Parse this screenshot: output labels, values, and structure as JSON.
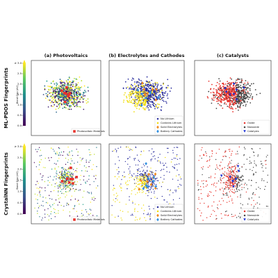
{
  "row_labels": [
    "ML-PDOS Fingerprints",
    "CrystalNN Fingerprints"
  ],
  "column_titles": [
    "(a) Photovoltaics",
    "(b) Electrolytes and Cathodes",
    "(c) Catalysts"
  ],
  "colorbar": {
    "label": "Band Gap (eV)",
    "ticks": [
      {
        "value": 0,
        "label": "0.0"
      },
      0.5,
      {
        "value": 1,
        "label": "1.0"
      },
      1.5,
      {
        "value": 2,
        "label": "2.0"
      },
      2.5,
      {
        "value": 3,
        "label": "≥ 3.0"
      }
    ]
  },
  "legends": [
    [
      {
        "label": "Photovoltaic Materials",
        "color": "#e8322b",
        "marker": "square"
      }
    ],
    [
      {
        "label": "No Lithium",
        "color": "#2b2f9e",
        "marker": "dot"
      },
      {
        "label": "Contains Lithium",
        "color": "#f0dc0a",
        "marker": "dot"
      },
      {
        "label": "Solid Electrolytes",
        "color": "#f08a1c",
        "marker": "diamond"
      },
      {
        "label": "Battery Cathodes",
        "color": "#2f8fe0",
        "marker": "diamond"
      }
    ],
    [
      {
        "label": "Oxide",
        "color": "#e8322b",
        "marker": "dot"
      },
      {
        "label": "Nonoxide",
        "color": "#444444",
        "marker": "dot"
      },
      {
        "label": "Catalysts",
        "color": "#1a2fd6",
        "marker": "triangle"
      }
    ]
  ]
}
